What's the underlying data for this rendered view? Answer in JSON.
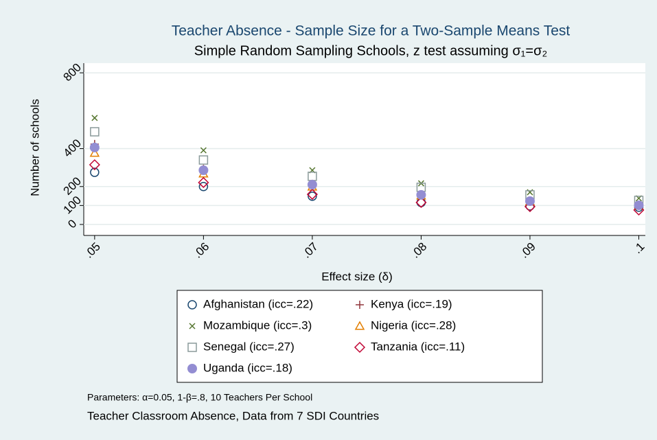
{
  "chart_data": {
    "type": "scatter",
    "title": "Teacher Absence - Sample Size for a Two-Sample Means Test",
    "subtitle": "Simple Random Sampling Schools, z test assuming σ₁=σ₂",
    "x_label": "Effect size (δ)",
    "y_label": "Number of schools",
    "note": "Parameters: α=0.05, 1-β=.8, 10 Teachers Per School",
    "caption": "Teacher Classroom Absence, Data from 7 SDI Countries",
    "x": [
      0.05,
      0.06,
      0.07,
      0.08,
      0.09,
      0.1
    ],
    "xlim": [
      0.049,
      0.1006
    ],
    "ylim": [
      -58,
      851
    ],
    "xticks": [
      {
        "value": 0.05,
        "label": ".05"
      },
      {
        "value": 0.06,
        "label": ".06"
      },
      {
        "value": 0.07,
        "label": ".07"
      },
      {
        "value": 0.08,
        "label": ".08"
      },
      {
        "value": 0.09,
        "label": ".09"
      },
      {
        "value": 0.1,
        "label": ".1"
      }
    ],
    "yticks": [
      0,
      100,
      200,
      400,
      800
    ],
    "grid": true,
    "series": [
      {
        "name": "Afghanistan (icc=.22)",
        "color": "#1a476f",
        "marker": "circle-hollow",
        "values": [
          275,
          200,
          149,
          116,
          98,
          91
        ]
      },
      {
        "name": "Kenya (icc=.19)",
        "color": "#90353b",
        "marker": "plus",
        "values": [
          424,
          293,
          214,
          159,
          123,
          101
        ]
      },
      {
        "name": "Mozambique (icc=.3)",
        "color": "#55752f",
        "marker": "x",
        "values": [
          562,
          391,
          286,
          217,
          170,
          138
        ]
      },
      {
        "name": "Nigeria (icc=.28)",
        "color": "#e37e00",
        "marker": "triangle-hollow",
        "values": [
          377,
          268,
          199,
          152,
          120,
          98
        ]
      },
      {
        "name": "Senegal (icc=.27)",
        "color": "#8a9a9a",
        "marker": "square-hollow",
        "values": [
          489,
          340,
          254,
          196,
          156,
          127
        ]
      },
      {
        "name": "Tanzania (icc=.11)",
        "color": "#c10534",
        "marker": "diamond-hollow",
        "values": [
          315,
          221,
          159,
          116,
          94,
          76
        ]
      },
      {
        "name": "Uganda (icc=.18)",
        "color": "#938dd2",
        "marker": "circle",
        "values": [
          406,
          286,
          210,
          156,
          123,
          101
        ]
      }
    ]
  }
}
